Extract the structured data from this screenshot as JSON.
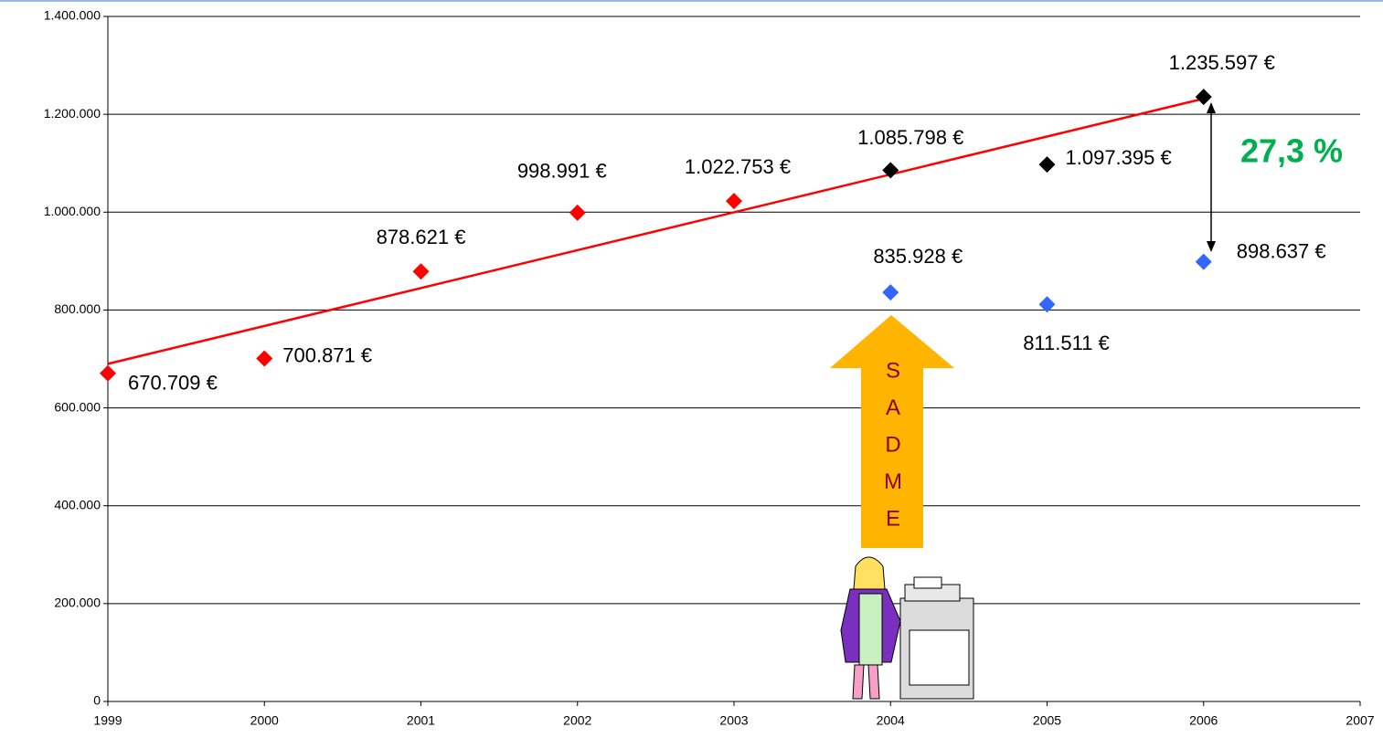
{
  "chart_data": {
    "type": "scatter",
    "xlim": [
      1999,
      2007
    ],
    "xticks": [
      1999,
      2000,
      2001,
      2002,
      2003,
      2004,
      2005,
      2006,
      2007
    ],
    "ylim": [
      0,
      1400000
    ],
    "yticks": [
      0,
      {
        "value": 200000,
        "label": "200.000"
      },
      {
        "value": 400000,
        "label": "400.000"
      },
      {
        "value": 600000,
        "label": "600.000"
      },
      {
        "value": 800000,
        "label": "800.000"
      },
      {
        "value": 1000000,
        "label": "1.000.000"
      },
      {
        "value": 1200000,
        "label": "1.200.000"
      },
      {
        "value": 1400000,
        "label": "1.400.000"
      }
    ],
    "grid": true,
    "series": [
      {
        "color": "#ff0000",
        "x": [
          1999,
          2000,
          2001,
          2002,
          2003
        ],
        "values": [
          670709,
          700871,
          878621,
          998991,
          1022753
        ],
        "value_labels": [
          "670.709 €",
          "700.871 €",
          "878.621 €",
          "998.991 €",
          "1.022.753 €"
        ]
      },
      {
        "color": "#000000",
        "x": [
          2004,
          2005,
          2006
        ],
        "values": [
          1085798,
          1097395,
          1235597
        ],
        "value_labels": [
          "1.085.798 €",
          "1.097.395 €",
          "1.235.597 €"
        ]
      },
      {
        "color": "#3366ff",
        "x": [
          2004,
          2005,
          2006
        ],
        "values": [
          835928,
          811511,
          898637
        ],
        "value_labels": [
          "835.928 €",
          "811.511 €",
          "898.637 €"
        ]
      }
    ],
    "trend_line": {
      "color": "#ff0000",
      "x": [
        1999,
        2006
      ],
      "values": [
        690000,
        1232000
      ]
    },
    "growth_label": "27,3 %",
    "arrow_text": [
      "S",
      "A",
      "D",
      "M",
      "E"
    ]
  }
}
